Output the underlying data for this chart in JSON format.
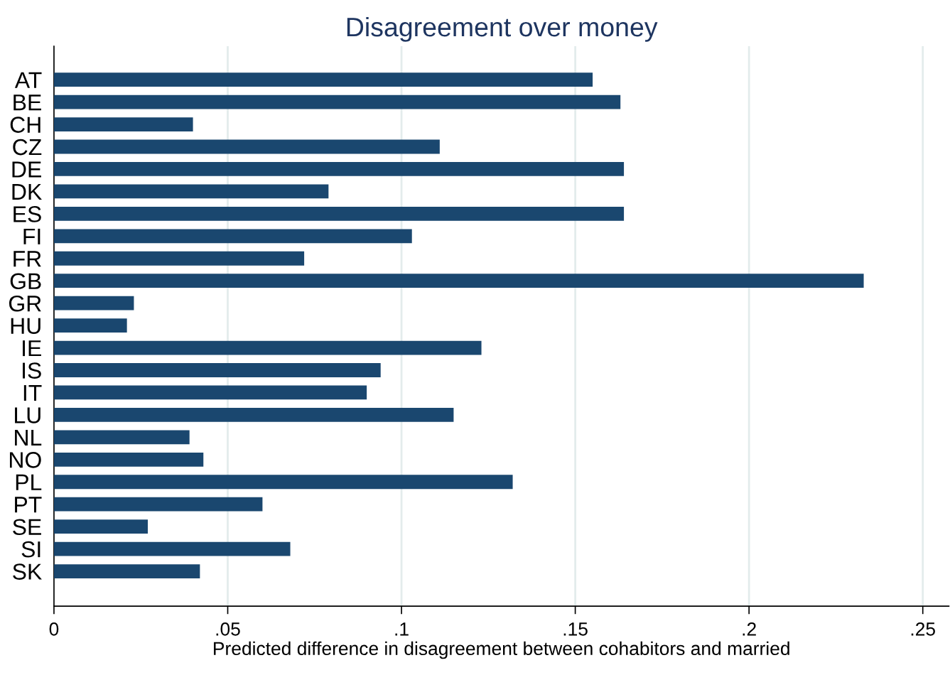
{
  "chart_data": {
    "type": "bar",
    "orientation": "horizontal",
    "title": "Disagreement over money",
    "xlabel": "Predicted difference in disagreement between cohabitors and married",
    "categories": [
      "AT",
      "BE",
      "CH",
      "CZ",
      "DE",
      "DK",
      "ES",
      "FI",
      "FR",
      "GB",
      "GR",
      "HU",
      "IE",
      "IS",
      "IT",
      "LU",
      "NL",
      "NO",
      "PL",
      "PT",
      "SE",
      "SI",
      "SK"
    ],
    "values": [
      0.155,
      0.163,
      0.04,
      0.111,
      0.164,
      0.079,
      0.164,
      0.103,
      0.072,
      0.233,
      0.023,
      0.021,
      0.123,
      0.094,
      0.09,
      0.115,
      0.039,
      0.043,
      0.132,
      0.06,
      0.027,
      0.068,
      0.042
    ],
    "color": "#1a476f",
    "xlim": [
      0,
      0.2575
    ],
    "xticks": [
      0,
      {
        "value": 0.05,
        "label": ".05"
      },
      {
        "value": 0.1,
        "label": ".1"
      },
      {
        "value": 0.15,
        "label": ".15"
      },
      {
        "value": 0.2,
        "label": ".2"
      },
      {
        "value": 0.25,
        "label": ".25"
      }
    ],
    "grid": "x"
  }
}
